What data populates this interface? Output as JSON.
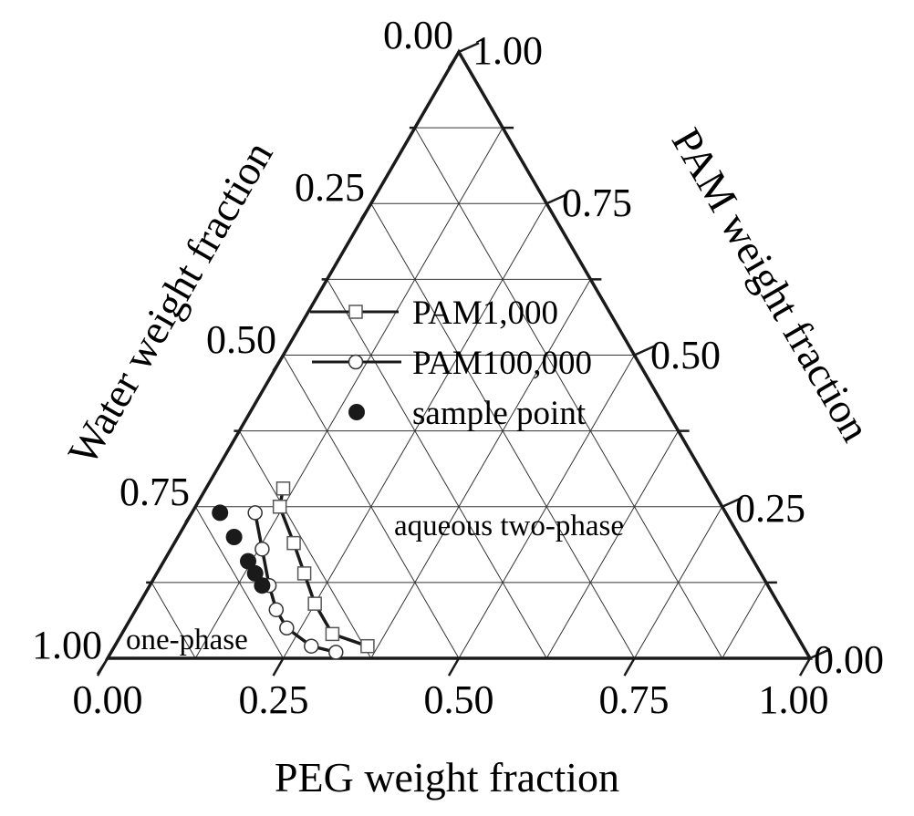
{
  "chart_data": {
    "type": "ternary",
    "title": "",
    "axes": {
      "bottom": {
        "label": "PEG weight fraction",
        "ticks": [
          "0.00",
          "0.25",
          "0.50",
          "0.75",
          "1.00"
        ]
      },
      "left": {
        "label": "Water weight fraction",
        "ticks": [
          "0.00",
          "0.25",
          "0.50",
          "0.75",
          "1.00"
        ]
      },
      "right": {
        "label": "PAM weight fraction",
        "ticks": [
          "0.00",
          "0.25",
          "0.50",
          "0.75",
          "1.00"
        ]
      },
      "grid_step": 0.125,
      "grid": true
    },
    "legend": [
      {
        "label": "PAM1,000",
        "marker": "open-square",
        "line": true
      },
      {
        "label": "PAM100,000",
        "marker": "open-circle",
        "line": true
      },
      {
        "label": "sample point",
        "marker": "filled-circle",
        "line": false
      }
    ],
    "annotations": [
      {
        "text": "aqueous two-phase"
      },
      {
        "text": "one-phase"
      }
    ],
    "series": [
      {
        "name": "PAM1,000",
        "marker": "open-square",
        "points": [
          {
            "PEG": 0.11,
            "PAM": 0.28,
            "Water": 0.61
          },
          {
            "PEG": 0.12,
            "PAM": 0.25,
            "Water": 0.63
          },
          {
            "PEG": 0.17,
            "PAM": 0.19,
            "Water": 0.64
          },
          {
            "PEG": 0.21,
            "PAM": 0.14,
            "Water": 0.65
          },
          {
            "PEG": 0.25,
            "PAM": 0.09,
            "Water": 0.66
          },
          {
            "PEG": 0.3,
            "PAM": 0.04,
            "Water": 0.66
          },
          {
            "PEG": 0.36,
            "PAM": 0.02,
            "Water": 0.62
          }
        ]
      },
      {
        "name": "PAM100,000",
        "marker": "open-circle",
        "points": [
          {
            "PEG": 0.09,
            "PAM": 0.24,
            "Water": 0.67
          },
          {
            "PEG": 0.13,
            "PAM": 0.18,
            "Water": 0.69
          },
          {
            "PEG": 0.17,
            "PAM": 0.12,
            "Water": 0.71
          },
          {
            "PEG": 0.2,
            "PAM": 0.08,
            "Water": 0.72
          },
          {
            "PEG": 0.23,
            "PAM": 0.05,
            "Water": 0.72
          },
          {
            "PEG": 0.28,
            "PAM": 0.02,
            "Water": 0.7
          },
          {
            "PEG": 0.32,
            "PAM": 0.01,
            "Water": 0.67
          }
        ]
      },
      {
        "name": "sample point",
        "marker": "filled-circle",
        "points": [
          {
            "PEG": 0.04,
            "PAM": 0.24,
            "Water": 0.72
          },
          {
            "PEG": 0.08,
            "PAM": 0.2,
            "Water": 0.72
          },
          {
            "PEG": 0.12,
            "PAM": 0.16,
            "Water": 0.72
          },
          {
            "PEG": 0.14,
            "PAM": 0.14,
            "Water": 0.72
          },
          {
            "PEG": 0.16,
            "PAM": 0.12,
            "Water": 0.72
          }
        ]
      }
    ]
  }
}
